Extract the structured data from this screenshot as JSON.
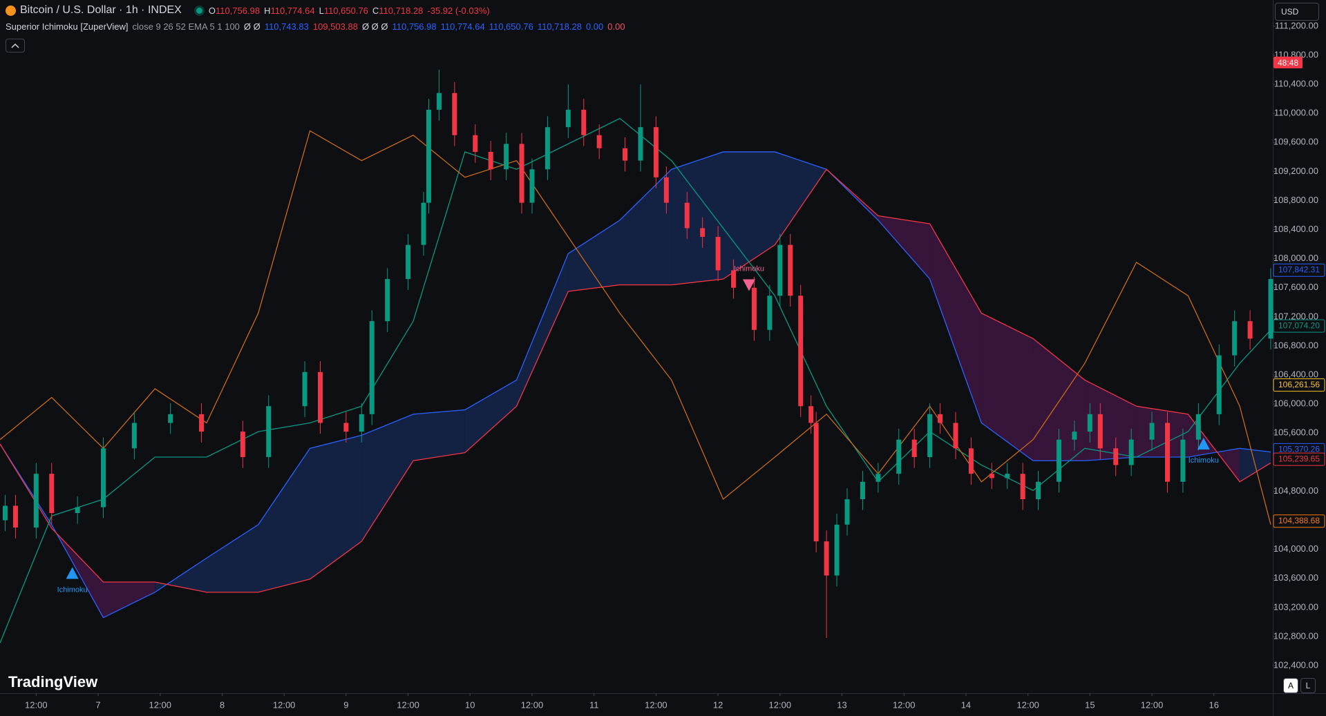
{
  "header": {
    "title": "Bitcoin / U.S. Dollar · 1h · INDEX",
    "ohlc": [
      {
        "key": "O",
        "value": "110,756.98"
      },
      {
        "key": "H",
        "value": "110,774.64"
      },
      {
        "key": "L",
        "value": "110,650.76"
      },
      {
        "key": "C",
        "value": "110,718.28"
      }
    ],
    "change": "-35.92 (-0.03%)"
  },
  "indicator": {
    "name": "Superior Ichimoku [ZuperView]",
    "params": "close 9 26 52 EMA 5 1 100",
    "values": [
      {
        "text": "Ø Ø",
        "color": "#d1d4dc"
      },
      {
        "text": "110,743.83",
        "color": "#2962ff"
      },
      {
        "text": "109,503.88",
        "color": "#f23645"
      },
      {
        "text": "Ø Ø Ø",
        "color": "#d1d4dc"
      },
      {
        "text": "110,756.98",
        "color": "#2962ff"
      },
      {
        "text": "110,774.64",
        "color": "#2962ff"
      },
      {
        "text": "110,650.76",
        "color": "#2962ff"
      },
      {
        "text": "110,718.28",
        "color": "#2962ff"
      },
      {
        "text": "0.00",
        "color": "#2962ff"
      },
      {
        "text": "0.00",
        "color": "#f7525f"
      }
    ]
  },
  "ui": {
    "currency": "USD",
    "logo": "TradingView",
    "buttons": [
      "A",
      "L"
    ],
    "countdown": "48:48"
  },
  "chart_data": {
    "type": "candlestick",
    "x": [
      1,
      3,
      7,
      10,
      15,
      20,
      26,
      33,
      39,
      47,
      52,
      59,
      62,
      67,
      70,
      72,
      75,
      79,
      82,
      83,
      85,
      88,
      92,
      95,
      98,
      101,
      103,
      106,
      110,
      113,
      116,
      121,
      124,
      127,
      129,
      133,
      136,
      139,
      142,
      146,
      149,
      151,
      153,
      155,
      157,
      158,
      160,
      162,
      164,
      167,
      170,
      174,
      177,
      180,
      182,
      185,
      188,
      192,
      195,
      198,
      201,
      205,
      208,
      211,
      213,
      216,
      219,
      223,
      226,
      229,
      232,
      236,
      239,
      242,
      246
    ],
    "open": [
      104400,
      104600,
      104300,
      105040,
      104500,
      104580,
      105390,
      105740,
      105860,
      105620,
      105270,
      105970,
      106440,
      105740,
      105620,
      105860,
      107140,
      107720,
      108190,
      108770,
      110050,
      110280,
      109700,
      109470,
      109230,
      109580,
      108770,
      109230,
      109810,
      110050,
      109700,
      109520,
      109350,
      109810,
      109120,
      108770,
      108420,
      108300,
      107840,
      107600,
      107020,
      107490,
      108190,
      107490,
      105970,
      105740,
      104110,
      103640,
      104340,
      104690,
      104930,
      105040,
      105510,
      105270,
      105860,
      105740,
      105390,
      105040,
      104980,
      105040,
      104690,
      104930,
      105510,
      105620,
      105860,
      105390,
      105160,
      105510,
      105740,
      104930,
      105510,
      105860,
      106670,
      107140,
      106900
    ],
    "high": [
      104750,
      104750,
      105190,
      105190,
      104730,
      105540,
      105890,
      106010,
      106010,
      105770,
      106120,
      106590,
      106590,
      105890,
      106010,
      107290,
      107870,
      108340,
      108920,
      110200,
      110600,
      110430,
      109850,
      109620,
      109730,
      109730,
      109380,
      109960,
      110400,
      110200,
      109850,
      109670,
      110400,
      109960,
      109270,
      108920,
      108570,
      108450,
      107990,
      107750,
      107640,
      108340,
      108340,
      107640,
      106120,
      105890,
      104260,
      104490,
      104840,
      105080,
      105190,
      105660,
      105660,
      106010,
      106010,
      105890,
      105540,
      105190,
      105190,
      105190,
      105080,
      105660,
      105770,
      106010,
      106010,
      105540,
      105660,
      105890,
      105890,
      105660,
      106010,
      106820,
      107290,
      107290,
      107870
    ],
    "low": [
      104250,
      104150,
      104150,
      104350,
      104350,
      104430,
      105240,
      105590,
      105470,
      105120,
      105120,
      105820,
      105590,
      105470,
      105470,
      105710,
      106990,
      107570,
      108040,
      108620,
      109900,
      109550,
      109320,
      109080,
      109080,
      108620,
      108620,
      109080,
      109660,
      109550,
      109370,
      109200,
      109200,
      108970,
      108620,
      108270,
      108150,
      107690,
      107450,
      106870,
      106870,
      107340,
      107340,
      105820,
      105590,
      103960,
      102780,
      103490,
      104190,
      104540,
      104780,
      104890,
      105120,
      105120,
      105590,
      105240,
      104890,
      104830,
      104830,
      104540,
      104540,
      104780,
      105360,
      105470,
      105240,
      105010,
      105010,
      105360,
      104780,
      104780,
      105360,
      105710,
      106520,
      106750,
      106750
    ],
    "close": [
      104600,
      104300,
      105040,
      104500,
      104580,
      105390,
      105740,
      105860,
      105620,
      105270,
      105970,
      106440,
      105740,
      105620,
      105860,
      107140,
      107720,
      108190,
      108770,
      110050,
      110280,
      109700,
      109470,
      109230,
      109580,
      108770,
      109230,
      109810,
      110050,
      109700,
      109520,
      109350,
      109810,
      109120,
      108770,
      108420,
      108300,
      107840,
      107600,
      107020,
      107490,
      108190,
      107490,
      105970,
      105740,
      104110,
      103640,
      104340,
      104690,
      104930,
      105040,
      105510,
      105270,
      105860,
      105740,
      105390,
      105040,
      104980,
      105040,
      104690,
      104930,
      105510,
      105620,
      105860,
      105390,
      105160,
      105510,
      105740,
      104930,
      105510,
      105860,
      106670,
      107140,
      106900,
      107720
    ],
    "up_color": "#089981",
    "down_color": "#f23645",
    "line_x": [
      0,
      10,
      20,
      30,
      40,
      50,
      60,
      70,
      80,
      90,
      100,
      110,
      120,
      130,
      140,
      150,
      160,
      170,
      180,
      190,
      200,
      210,
      220,
      230,
      240,
      246
    ],
    "span_a": {
      "color": "#2962ff",
      "values": [
        105450,
        104340,
        103060,
        103410,
        103880,
        104340,
        105390,
        105570,
        105860,
        105920,
        106330,
        108070,
        108530,
        109230,
        109470,
        109470,
        109230,
        108530,
        107720,
        105740,
        105220,
        105220,
        105270,
        105270,
        105390,
        105340
      ]
    },
    "span_b": {
      "color": "#f23645",
      "values": [
        105450,
        104290,
        103550,
        103550,
        103410,
        103410,
        103590,
        104110,
        105220,
        105330,
        105970,
        107550,
        107640,
        107640,
        107720,
        108190,
        109230,
        108590,
        108480,
        107250,
        106900,
        106330,
        105970,
        105860,
        104930,
        105190
      ]
    },
    "cloud_colors": [
      "#142449",
      "#3c1640"
    ],
    "lines": [
      {
        "color": "#089981",
        "values": [
          102710,
          104460,
          104690,
          105270,
          105270,
          105620,
          105740,
          105970,
          107140,
          109470,
          109230,
          109580,
          109930,
          109350,
          108420,
          107490,
          105970,
          104930,
          105620,
          105160,
          104810,
          105390,
          105270,
          105620,
          106560,
          107020
        ]
      },
      {
        "color": "#c96a1a",
        "values": [
          105510,
          106090,
          105390,
          106210,
          105740,
          107250,
          109760,
          109350,
          109700,
          109120,
          109350,
          108300,
          107250,
          106330,
          104690,
          105270,
          105860,
          105040,
          105970,
          104930,
          105510,
          106560,
          107950,
          107490,
          105970,
          104340
        ]
      }
    ],
    "signals": [
      {
        "text": "Ichimoku",
        "x": 14,
        "y": 103670,
        "direction": "up",
        "color": "#2196f3"
      },
      {
        "text": "Ichimoku",
        "x": 145,
        "y": 107640,
        "direction": "down",
        "color": "#f06292"
      },
      {
        "text": "Ichimoku",
        "x": 233,
        "y": 105450,
        "direction": "up",
        "color": "#2196f3"
      }
    ],
    "price_labels": [
      {
        "value": 107842.31,
        "label": "107,842.31",
        "color": "#2962ff"
      },
      {
        "value": 107074.2,
        "label": "107,074.20",
        "color": "#089981"
      },
      {
        "value": 106261.56,
        "label": "106,261.56",
        "color": "#f7c325"
      },
      {
        "value": 105370.26,
        "label": "105,370.26",
        "color": "#2962ff"
      },
      {
        "value": 105239.65,
        "label": "105,239.65",
        "color": "#f23645"
      },
      {
        "value": 104388.68,
        "label": "104,388.68",
        "color": "#f57c00"
      }
    ],
    "xlim": [
      0,
      246.4
    ],
    "ylim": [
      102020,
      111560
    ],
    "xticks": [
      {
        "value": 7,
        "label": "12:00"
      },
      {
        "value": 19,
        "label": "7"
      },
      {
        "value": 31,
        "label": "12:00"
      },
      {
        "value": 43,
        "label": "8"
      },
      {
        "value": 55,
        "label": "12:00"
      },
      {
        "value": 67,
        "label": "9"
      },
      {
        "value": 79,
        "label": "12:00"
      },
      {
        "value": 91,
        "label": "10"
      },
      {
        "value": 103,
        "label": "12:00"
      },
      {
        "value": 115,
        "label": "11"
      },
      {
        "value": 127,
        "label": "12:00"
      },
      {
        "value": 139,
        "label": "12"
      },
      {
        "value": 151,
        "label": "12:00"
      },
      {
        "value": 163,
        "label": "13"
      },
      {
        "value": 175,
        "label": "12:00"
      },
      {
        "value": 187,
        "label": "14"
      },
      {
        "value": 199,
        "label": "12:00"
      },
      {
        "value": 211,
        "label": "15"
      },
      {
        "value": 223,
        "label": "12:00"
      },
      {
        "value": 235,
        "label": "16"
      }
    ],
    "yticks": [
      {
        "value": 111200,
        "label": "111,200.00"
      },
      {
        "value": 110800,
        "label": "110,800.00"
      },
      {
        "value": 110400,
        "label": "110,400.00"
      },
      {
        "value": 110000,
        "label": "110,000.00"
      },
      {
        "value": 109600,
        "label": "109,600.00"
      },
      {
        "value": 109200,
        "label": "109,200.00"
      },
      {
        "value": 108800,
        "label": "108,800.00"
      },
      {
        "value": 108400,
        "label": "108,400.00"
      },
      {
        "value": 108000,
        "label": "108,000.00"
      },
      {
        "value": 107600,
        "label": "107,600.00"
      },
      {
        "value": 107200,
        "label": "107,200.00"
      },
      {
        "value": 106800,
        "label": "106,800.00"
      },
      {
        "value": 106400,
        "label": "106,400.00"
      },
      {
        "value": 106000,
        "label": "106,000.00"
      },
      {
        "value": 105600,
        "label": "105,600.00"
      },
      {
        "value": 105200,
        "label": "105,200.00"
      },
      {
        "value": 104800,
        "label": "104,800.00"
      },
      {
        "value": 104400,
        "label": "104,400.00"
      },
      {
        "value": 104000,
        "label": "104,000.00"
      },
      {
        "value": 103600,
        "label": "103,600.00"
      },
      {
        "value": 103200,
        "label": "103,200.00"
      },
      {
        "value": 102800,
        "label": "102,800.00"
      },
      {
        "value": 102400,
        "label": "102,400.00"
      }
    ],
    "grid": false
  }
}
